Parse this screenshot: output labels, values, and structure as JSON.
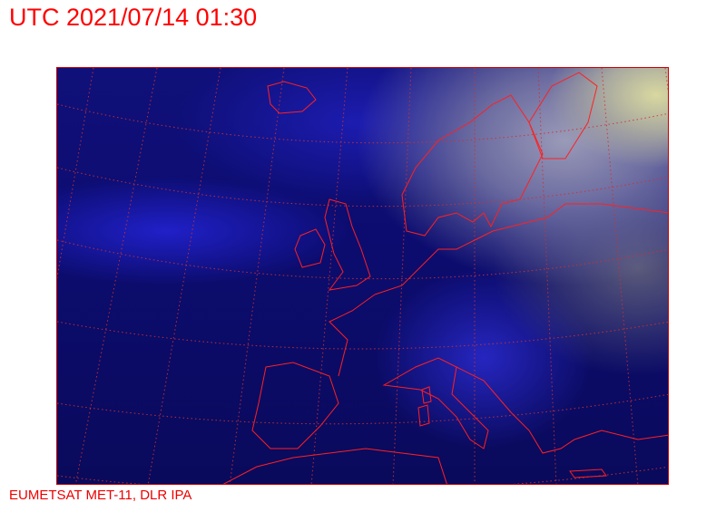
{
  "header": {
    "title": "UTC 2021/07/14 01:30"
  },
  "footer": {
    "credit": "EUMETSAT MET-11, DLR IPA"
  },
  "colors": {
    "overlay": "#ff0000",
    "background_ocean": "#0c0c70"
  }
}
